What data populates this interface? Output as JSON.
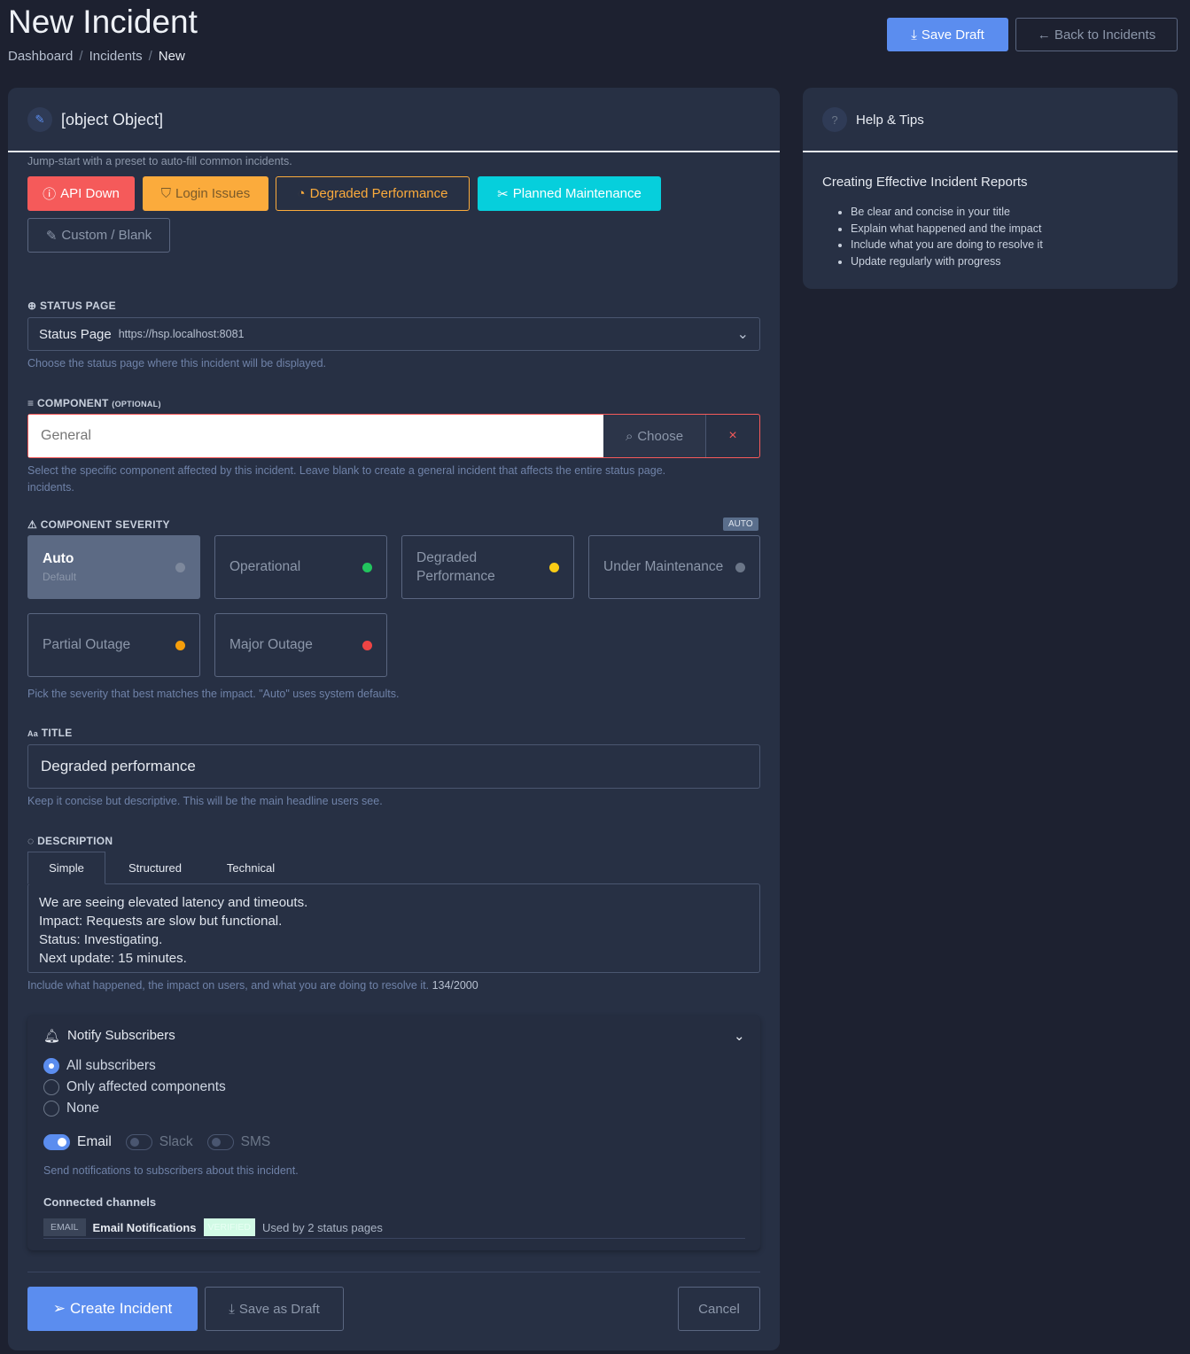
{
  "header": {
    "title": "New Incident",
    "breadcrumb": [
      "Dashboard",
      "Incidents",
      "New"
    ],
    "save_draft": "Save Draft",
    "back": "← Back to Incidents"
  },
  "details": {
    "title": {
      "label": "TITLE",
      "icon_text": "Aa",
      "value": "Degraded performance",
      "hint": "Keep it concise but descriptive. This will be the main headline users see."
    },
    "preset_hint": "Jump-start with a preset to auto-fill common incidents.",
    "presets": [
      "API Down",
      "Login Issues",
      "Degraded Performance",
      "Planned Maintenance",
      "Custom / Blank"
    ],
    "status_page": {
      "label": "STATUS PAGE",
      "value": "Status Page",
      "url": "https://hsp.localhost:8081",
      "hint": "Choose the status page where this incident will be displayed."
    },
    "component": {
      "label": "COMPONENT",
      "optional": "(OPTIONAL)",
      "placeholder": "General",
      "choose": "Choose",
      "clear": "×",
      "hint": "Select the specific component affected by this incident. Leave blank to create a general incident that affects the entire status page.",
      "hint2": "incidents."
    },
    "severity": {
      "label": "COMPONENT SEVERITY",
      "badge": "AUTO",
      "options": [
        {
          "label": "Auto",
          "sub": "Default",
          "color": "#6b7688"
        },
        {
          "label": "Operational",
          "color": "#22c55e"
        },
        {
          "label": "Degraded Performance",
          "color": "#facc15"
        },
        {
          "label": "Under Maintenance",
          "color": "#6b7688"
        },
        {
          "label": "Partial Outage",
          "color": "#f59e0b"
        },
        {
          "label": "Major Outage",
          "color": "#ef4444"
        }
      ],
      "hint": "Pick the severity that best matches the impact. \"Auto\" uses system defaults."
    },
    "description": {
      "label": "DESCRIPTION",
      "tabs": [
        "Simple",
        "Structured",
        "Technical"
      ],
      "lines": [
        "We are seeing elevated latency and timeouts.",
        "Impact: Requests are slow but functional.",
        "Status: Investigating.",
        "Next update: 15 minutes."
      ],
      "hint": "Include what happened, the impact on users, and what you are doing to resolve it.",
      "count": "134/2000"
    },
    "notify": {
      "title": "Notify Subscribers",
      "options": [
        "All subscribers",
        "Only affected components",
        "None"
      ],
      "selected": 0,
      "channels": [
        {
          "label": "Email",
          "on": true
        },
        {
          "label": "Slack",
          "on": false
        },
        {
          "label": "SMS",
          "on": false
        }
      ],
      "hint": "Send notifications to subscribers about this incident.",
      "connected_label": "Connected channels",
      "connected": {
        "type": "EMAIL",
        "name": "Email Notifications",
        "badge": "VERIFIED",
        "usage": "Used by 2 status pages"
      }
    },
    "actions": {
      "create": "Create Incident",
      "save": "Save as Draft",
      "cancel": "Cancel"
    }
  },
  "help": {
    "title": "Help & Tips",
    "heading": "Creating Effective Incident Reports",
    "tips": [
      "Be clear and concise in your title",
      "Explain what happened and the impact",
      "Include what you are doing to resolve it",
      "Update regularly with progress"
    ]
  },
  "colors": {
    "primary": "#5b8def",
    "danger": "#f55a5a",
    "warning": "#fbab3c",
    "info": "#06cfdc"
  }
}
